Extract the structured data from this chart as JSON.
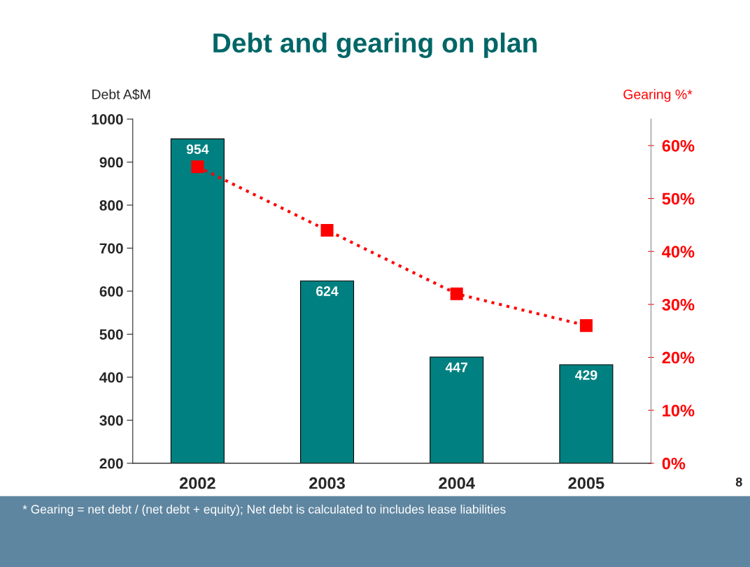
{
  "chart_data": {
    "type": "bar",
    "title": "Debt and gearing on plan",
    "categories": [
      "2002",
      "2003",
      "2004",
      "2005"
    ],
    "ylabel": "Debt A$M",
    "y2label": "Gearing %*",
    "series": [
      {
        "name": null,
        "color": "#008080",
        "values": [
          954,
          624,
          447,
          429
        ],
        "data_labels": true
      },
      {
        "name": null,
        "type": "line",
        "axis": "y2",
        "color": "#ff0000",
        "values": [
          56,
          44,
          32,
          26
        ],
        "marker": "square",
        "line_style": "dotted"
      }
    ],
    "ylim": [
      200,
      1000
    ],
    "yticks": [
      200,
      300,
      400,
      500,
      600,
      700,
      800,
      900,
      1000
    ],
    "y2lim": [
      0,
      65
    ],
    "y2ticks": [
      {
        "value": 0,
        "label": "0%"
      },
      {
        "value": 10,
        "label": "10%"
      },
      {
        "value": 20,
        "label": "20%"
      },
      {
        "value": 30,
        "label": "30%"
      },
      {
        "value": 40,
        "label": "40%"
      },
      {
        "value": 50,
        "label": "50%"
      },
      {
        "value": 60,
        "label": "60%"
      }
    ],
    "grid": false,
    "legend": false,
    "annotations": [
      "* Gearing = net debt / (net debt + equity); Net debt is calculated to includes lease liabilities",
      "8"
    ]
  }
}
